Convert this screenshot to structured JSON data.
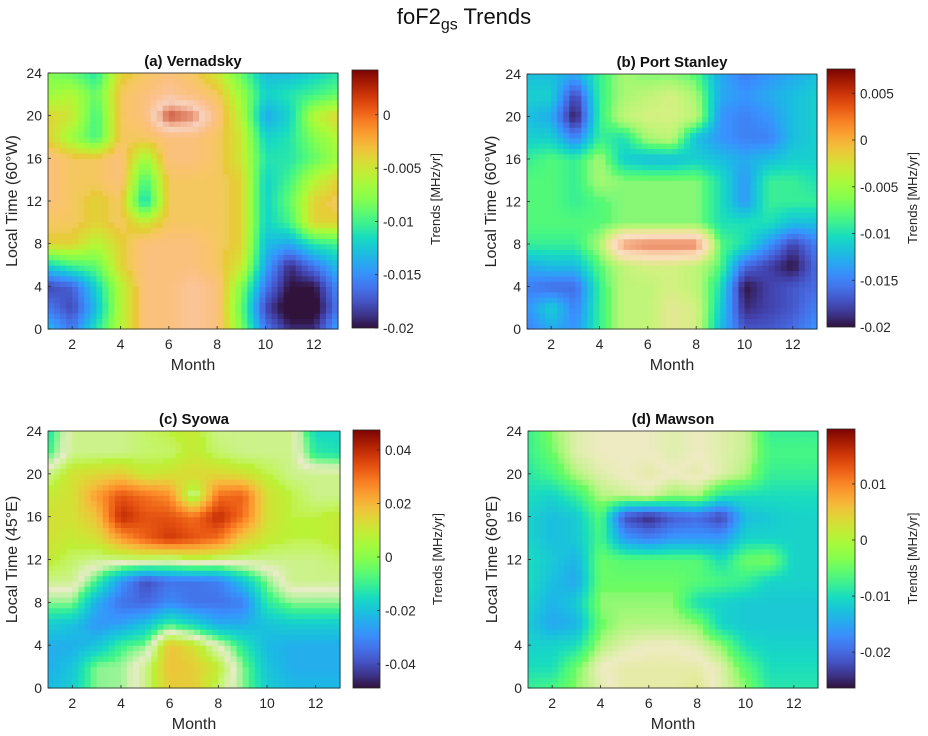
{
  "figure": {
    "title_main": "foF2",
    "title_sub": "gs",
    "title_rest": " Trends"
  },
  "chart_data": [
    {
      "type": "heatmap",
      "title": "(a) Vernadsky",
      "xlabel": "Month",
      "ylabel": "Local Time (60°W)",
      "xlim": [
        1,
        13
      ],
      "ylim": [
        0,
        24
      ],
      "xticks": [
        "2",
        "4",
        "6",
        "8",
        "10",
        "12"
      ],
      "xtick_values": [
        2,
        4,
        6,
        8,
        10,
        12
      ],
      "yticks": [
        "0",
        "4",
        "8",
        "12",
        "16",
        "20",
        "24"
      ],
      "ytick_values": [
        0,
        4,
        8,
        12,
        16,
        20,
        24
      ],
      "colorbar_label": "Trends [MHz/yr]",
      "clim": [
        -0.02,
        0.0042
      ],
      "cticks": [
        "-0.02",
        "-0.015",
        "-0.01",
        "-0.005",
        "0"
      ],
      "ctick_values": [
        -0.02,
        -0.015,
        -0.01,
        -0.005,
        0
      ],
      "x": [
        1,
        2,
        3,
        4,
        5,
        6,
        7,
        8,
        9,
        10,
        11,
        12,
        13
      ],
      "y": [
        0,
        2,
        4,
        6,
        8,
        10,
        12,
        14,
        16,
        18,
        20,
        22,
        24
      ],
      "z": [
        [
          -0.013,
          -0.016,
          -0.011,
          -0.006,
          -0.002,
          -0.002,
          -0.001,
          -0.002,
          -0.008,
          -0.016,
          -0.019,
          -0.019,
          -0.014
        ],
        [
          -0.016,
          -0.018,
          -0.013,
          -0.006,
          -0.002,
          -0.002,
          -0.001,
          -0.002,
          -0.009,
          -0.018,
          -0.021,
          -0.021,
          -0.016
        ],
        [
          -0.018,
          -0.017,
          -0.012,
          -0.006,
          -0.002,
          -0.002,
          -0.001,
          -0.002,
          -0.008,
          -0.016,
          -0.02,
          -0.02,
          -0.015
        ],
        [
          -0.012,
          -0.01,
          -0.009,
          -0.004,
          -0.002,
          -0.002,
          -0.002,
          -0.003,
          -0.005,
          -0.014,
          -0.019,
          -0.016,
          -0.013
        ],
        [
          -0.004,
          -0.004,
          -0.006,
          -0.004,
          -0.002,
          -0.002,
          -0.002,
          -0.003,
          -0.004,
          -0.013,
          -0.014,
          -0.011,
          -0.01
        ],
        [
          -0.003,
          -0.003,
          -0.004,
          -0.003,
          -0.005,
          -0.003,
          -0.003,
          -0.003,
          -0.004,
          -0.012,
          -0.01,
          -0.004,
          -0.004
        ],
        [
          -0.002,
          -0.003,
          -0.004,
          -0.003,
          -0.012,
          -0.003,
          -0.003,
          -0.003,
          -0.004,
          -0.012,
          -0.009,
          -0.004,
          -0.003
        ],
        [
          -0.002,
          -0.003,
          -0.003,
          -0.002,
          -0.01,
          -0.003,
          -0.003,
          -0.003,
          -0.004,
          -0.012,
          -0.01,
          -0.006,
          -0.004
        ],
        [
          -0.002,
          -0.003,
          -0.003,
          -0.002,
          -0.007,
          -0.002,
          -0.002,
          -0.003,
          -0.005,
          -0.011,
          -0.011,
          -0.009,
          -0.007
        ],
        [
          -0.004,
          -0.007,
          -0.01,
          -0.003,
          -0.003,
          -0.002,
          -0.002,
          -0.003,
          -0.005,
          -0.012,
          -0.011,
          -0.008,
          -0.006
        ],
        [
          -0.004,
          -0.005,
          -0.01,
          -0.003,
          -0.002,
          0.003,
          0.002,
          -0.002,
          -0.006,
          -0.014,
          -0.012,
          -0.006,
          -0.004
        ],
        [
          -0.007,
          -0.006,
          -0.009,
          -0.003,
          -0.002,
          -0.001,
          -0.002,
          -0.003,
          -0.007,
          -0.012,
          -0.011,
          -0.01,
          -0.009
        ],
        [
          -0.008,
          -0.009,
          -0.011,
          -0.004,
          -0.003,
          -0.002,
          -0.003,
          -0.005,
          -0.009,
          -0.013,
          -0.013,
          -0.012,
          -0.011
        ]
      ]
    },
    {
      "type": "heatmap",
      "title": "(b) Port Stanley",
      "xlabel": "Month",
      "ylabel": "Local Time (60°W)",
      "xlim": [
        1,
        13
      ],
      "ylim": [
        0,
        24
      ],
      "xticks": [
        "2",
        "4",
        "6",
        "8",
        "10",
        "12"
      ],
      "xtick_values": [
        2,
        4,
        6,
        8,
        10,
        12
      ],
      "yticks": [
        "0",
        "4",
        "8",
        "12",
        "16",
        "20",
        "24"
      ],
      "ytick_values": [
        0,
        4,
        8,
        12,
        16,
        20,
        24
      ],
      "colorbar_label": "Trends [MHz/yr]",
      "clim": [
        -0.02,
        0.0076
      ],
      "cticks": [
        "-0.02",
        "-0.015",
        "-0.01",
        "-0.005",
        "0",
        "0.005"
      ],
      "ctick_values": [
        -0.02,
        -0.015,
        -0.01,
        -0.005,
        0,
        0.005
      ],
      "x": [
        1,
        2,
        3,
        4,
        5,
        6,
        7,
        8,
        9,
        10,
        11,
        12,
        13
      ],
      "y": [
        0,
        2,
        4,
        6,
        8,
        10,
        12,
        14,
        16,
        18,
        20,
        22,
        24
      ],
      "z": [
        [
          -0.015,
          -0.013,
          -0.014,
          -0.009,
          -0.005,
          -0.005,
          -0.003,
          -0.004,
          -0.012,
          -0.017,
          -0.017,
          -0.016,
          -0.014
        ],
        [
          -0.014,
          -0.011,
          -0.015,
          -0.009,
          -0.005,
          -0.005,
          -0.003,
          -0.004,
          -0.011,
          -0.019,
          -0.018,
          -0.017,
          -0.015
        ],
        [
          -0.015,
          -0.016,
          -0.016,
          -0.009,
          -0.005,
          -0.005,
          -0.004,
          -0.005,
          -0.01,
          -0.02,
          -0.018,
          -0.017,
          -0.016
        ],
        [
          -0.013,
          -0.012,
          -0.012,
          -0.008,
          -0.005,
          -0.004,
          -0.004,
          -0.005,
          -0.008,
          -0.016,
          -0.018,
          -0.02,
          -0.016
        ],
        [
          -0.009,
          -0.009,
          -0.009,
          -0.006,
          0.004,
          0.005,
          0.005,
          0.005,
          -0.008,
          -0.01,
          -0.014,
          -0.018,
          -0.015
        ],
        [
          -0.008,
          -0.008,
          -0.008,
          -0.008,
          -0.007,
          -0.007,
          -0.007,
          -0.007,
          -0.01,
          -0.01,
          -0.01,
          -0.012,
          -0.012
        ],
        [
          -0.008,
          -0.008,
          -0.009,
          -0.008,
          -0.007,
          -0.007,
          -0.007,
          -0.007,
          -0.01,
          -0.014,
          -0.009,
          -0.009,
          -0.009
        ],
        [
          -0.008,
          -0.008,
          -0.009,
          -0.006,
          -0.007,
          -0.007,
          -0.007,
          -0.007,
          -0.01,
          -0.014,
          -0.009,
          -0.009,
          -0.01
        ],
        [
          -0.009,
          -0.008,
          -0.009,
          -0.006,
          -0.011,
          -0.012,
          -0.012,
          -0.011,
          -0.012,
          -0.013,
          -0.012,
          -0.011,
          -0.011
        ],
        [
          -0.011,
          -0.011,
          -0.015,
          -0.009,
          -0.01,
          -0.006,
          -0.005,
          -0.012,
          -0.014,
          -0.015,
          -0.015,
          -0.012,
          -0.011
        ],
        [
          -0.012,
          -0.013,
          -0.02,
          -0.009,
          -0.005,
          -0.004,
          -0.004,
          -0.005,
          -0.014,
          -0.015,
          -0.014,
          -0.012,
          -0.011
        ],
        [
          -0.011,
          -0.011,
          -0.018,
          -0.009,
          -0.006,
          -0.005,
          -0.004,
          -0.006,
          -0.013,
          -0.014,
          -0.013,
          -0.012,
          -0.011
        ],
        [
          -0.012,
          -0.012,
          -0.013,
          -0.009,
          -0.006,
          -0.007,
          -0.007,
          -0.008,
          -0.013,
          -0.015,
          -0.014,
          -0.013,
          -0.012
        ]
      ]
    },
    {
      "type": "heatmap",
      "title": "(c) Syowa",
      "xlabel": "Month",
      "ylabel": "Local Time (45°E)",
      "xlim": [
        1,
        13
      ],
      "ylim": [
        0,
        24
      ],
      "xticks": [
        "2",
        "4",
        "6",
        "8",
        "10",
        "12"
      ],
      "xtick_values": [
        2,
        4,
        6,
        8,
        10,
        12
      ],
      "yticks": [
        "0",
        "4",
        "8",
        "12",
        "16",
        "20",
        "24"
      ],
      "ytick_values": [
        0,
        4,
        8,
        12,
        16,
        20,
        24
      ],
      "colorbar_label": "Trends [MHz/yr]",
      "clim": [
        -0.049,
        0.0475
      ],
      "cticks": [
        "-0.04",
        "-0.02",
        "0",
        "0.02",
        "0.04"
      ],
      "ctick_values": [
        -0.04,
        -0.02,
        0,
        0.02,
        0.04
      ],
      "x": [
        1,
        2,
        3,
        4,
        5,
        6,
        7,
        8,
        9,
        10,
        11,
        12,
        13
      ],
      "y": [
        0,
        2,
        4,
        6,
        8,
        10,
        12,
        14,
        16,
        18,
        20,
        22,
        24
      ],
      "z": [
        [
          -0.022,
          -0.018,
          -0.006,
          -0.005,
          0.004,
          0.016,
          0.016,
          0.006,
          -0.006,
          -0.018,
          -0.022,
          -0.022,
          -0.022
        ],
        [
          -0.024,
          -0.02,
          -0.006,
          -0.005,
          0.004,
          0.018,
          0.016,
          0.01,
          -0.006,
          -0.02,
          -0.024,
          -0.024,
          -0.024
        ],
        [
          -0.024,
          -0.024,
          -0.02,
          -0.01,
          -0.006,
          0.018,
          0.012,
          0.0,
          -0.012,
          -0.022,
          -0.024,
          -0.024,
          -0.024
        ],
        [
          -0.018,
          -0.02,
          -0.028,
          -0.026,
          -0.02,
          -0.01,
          -0.016,
          -0.024,
          -0.024,
          -0.02,
          -0.018,
          -0.018,
          -0.018
        ],
        [
          -0.006,
          -0.006,
          -0.024,
          -0.034,
          -0.036,
          -0.03,
          -0.034,
          -0.034,
          -0.032,
          -0.012,
          -0.006,
          -0.006,
          -0.006
        ],
        [
          0.004,
          0.004,
          -0.01,
          -0.028,
          -0.04,
          -0.034,
          -0.034,
          -0.032,
          -0.02,
          -0.006,
          0.004,
          0.004,
          0.004
        ],
        [
          0.01,
          0.006,
          0.004,
          0.004,
          0.004,
          0.002,
          0.006,
          0.004,
          0.004,
          0.004,
          0.004,
          0.004,
          0.006
        ],
        [
          0.012,
          0.01,
          0.012,
          0.024,
          0.032,
          0.038,
          0.034,
          0.03,
          0.016,
          0.01,
          0.008,
          0.008,
          0.01
        ],
        [
          0.012,
          0.012,
          0.018,
          0.04,
          0.034,
          0.034,
          0.03,
          0.04,
          0.03,
          0.012,
          0.008,
          0.008,
          0.01
        ],
        [
          0.01,
          0.012,
          0.024,
          0.034,
          0.03,
          0.026,
          0.002,
          0.03,
          0.032,
          0.012,
          0.008,
          0.004,
          0.004
        ],
        [
          0.004,
          0.012,
          0.014,
          0.016,
          0.01,
          0.012,
          0.014,
          0.014,
          0.012,
          0.008,
          0.004,
          0.004,
          0.004
        ],
        [
          -0.01,
          0.004,
          0.004,
          0.004,
          0.006,
          0.006,
          0.01,
          0.006,
          0.004,
          0.004,
          0.004,
          -0.012,
          -0.014
        ],
        [
          -0.014,
          0.004,
          0.004,
          0.004,
          0.006,
          0.008,
          0.01,
          0.004,
          0.004,
          0.004,
          0.004,
          -0.016,
          -0.016
        ]
      ]
    },
    {
      "type": "heatmap",
      "title": "(d) Mawson",
      "xlabel": "Month",
      "ylabel": "Local Time (60°E)",
      "xlim": [
        1,
        13
      ],
      "ylim": [
        0,
        24
      ],
      "xticks": [
        "2",
        "4",
        "6",
        "8",
        "10",
        "12"
      ],
      "xtick_values": [
        2,
        4,
        6,
        8,
        10,
        12
      ],
      "yticks": [
        "0",
        "4",
        "12",
        "16",
        "20",
        "24"
      ],
      "ytick_values": [
        0,
        4,
        12,
        16,
        20,
        24
      ],
      "colorbar_label": "Trends [MHz/yr]",
      "clim": [
        -0.0264,
        0.0198
      ],
      "cticks": [
        "-0.02",
        "-0.01",
        "0",
        "0.01"
      ],
      "ctick_values": [
        -0.02,
        -0.01,
        0,
        0.01
      ],
      "x": [
        1,
        2,
        3,
        4,
        5,
        6,
        7,
        8,
        9,
        10,
        11,
        12,
        13
      ],
      "y": [
        0,
        2,
        4,
        6,
        8,
        10,
        12,
        14,
        16,
        18,
        20,
        22,
        24
      ],
      "z": [
        [
          -0.008,
          -0.007,
          -0.004,
          -0.001,
          0.001,
          0.001,
          0.001,
          0.002,
          -0.001,
          -0.004,
          -0.009,
          -0.009,
          -0.009
        ],
        [
          -0.01,
          -0.01,
          -0.005,
          0.0,
          0.001,
          0.001,
          0.001,
          0.001,
          -0.001,
          -0.006,
          -0.01,
          -0.01,
          -0.01
        ],
        [
          -0.011,
          -0.011,
          -0.01,
          -0.003,
          -0.001,
          0.0,
          0.0,
          -0.001,
          -0.004,
          -0.01,
          -0.011,
          -0.011,
          -0.011
        ],
        [
          -0.012,
          -0.015,
          -0.014,
          -0.005,
          -0.003,
          -0.003,
          -0.003,
          -0.004,
          -0.011,
          -0.012,
          -0.012,
          -0.012,
          -0.012
        ],
        [
          -0.011,
          -0.014,
          -0.012,
          -0.004,
          -0.004,
          -0.004,
          -0.004,
          -0.01,
          -0.011,
          -0.012,
          -0.012,
          -0.012,
          -0.012
        ],
        [
          -0.01,
          -0.013,
          -0.015,
          -0.005,
          -0.005,
          -0.005,
          -0.005,
          -0.006,
          -0.007,
          -0.008,
          -0.011,
          -0.011,
          -0.011
        ],
        [
          -0.01,
          -0.012,
          -0.014,
          -0.005,
          -0.006,
          -0.006,
          -0.006,
          -0.006,
          -0.01,
          -0.005,
          -0.004,
          -0.011,
          -0.011
        ],
        [
          -0.011,
          -0.013,
          -0.012,
          -0.007,
          -0.016,
          -0.018,
          -0.016,
          -0.016,
          -0.016,
          -0.011,
          -0.011,
          -0.011,
          -0.011
        ],
        [
          -0.011,
          -0.013,
          -0.012,
          -0.006,
          -0.022,
          -0.025,
          -0.021,
          -0.02,
          -0.023,
          -0.013,
          -0.012,
          -0.011,
          -0.011
        ],
        [
          -0.01,
          -0.011,
          -0.008,
          -0.003,
          -0.002,
          -0.001,
          -0.004,
          -0.003,
          -0.009,
          -0.01,
          -0.01,
          -0.01,
          -0.01
        ],
        [
          -0.009,
          -0.007,
          -0.003,
          -0.001,
          0.0,
          0.001,
          0.0,
          0.001,
          -0.001,
          -0.003,
          -0.008,
          -0.008,
          -0.008
        ],
        [
          -0.008,
          -0.005,
          -0.001,
          0.0,
          0.0,
          0.0,
          -0.001,
          0.0,
          -0.001,
          -0.002,
          -0.007,
          -0.007,
          -0.007
        ],
        [
          -0.008,
          -0.004,
          -0.001,
          0.0,
          0.0,
          0.0,
          -0.001,
          0.0,
          -0.001,
          -0.002,
          -0.008,
          -0.008,
          -0.008
        ]
      ]
    }
  ]
}
